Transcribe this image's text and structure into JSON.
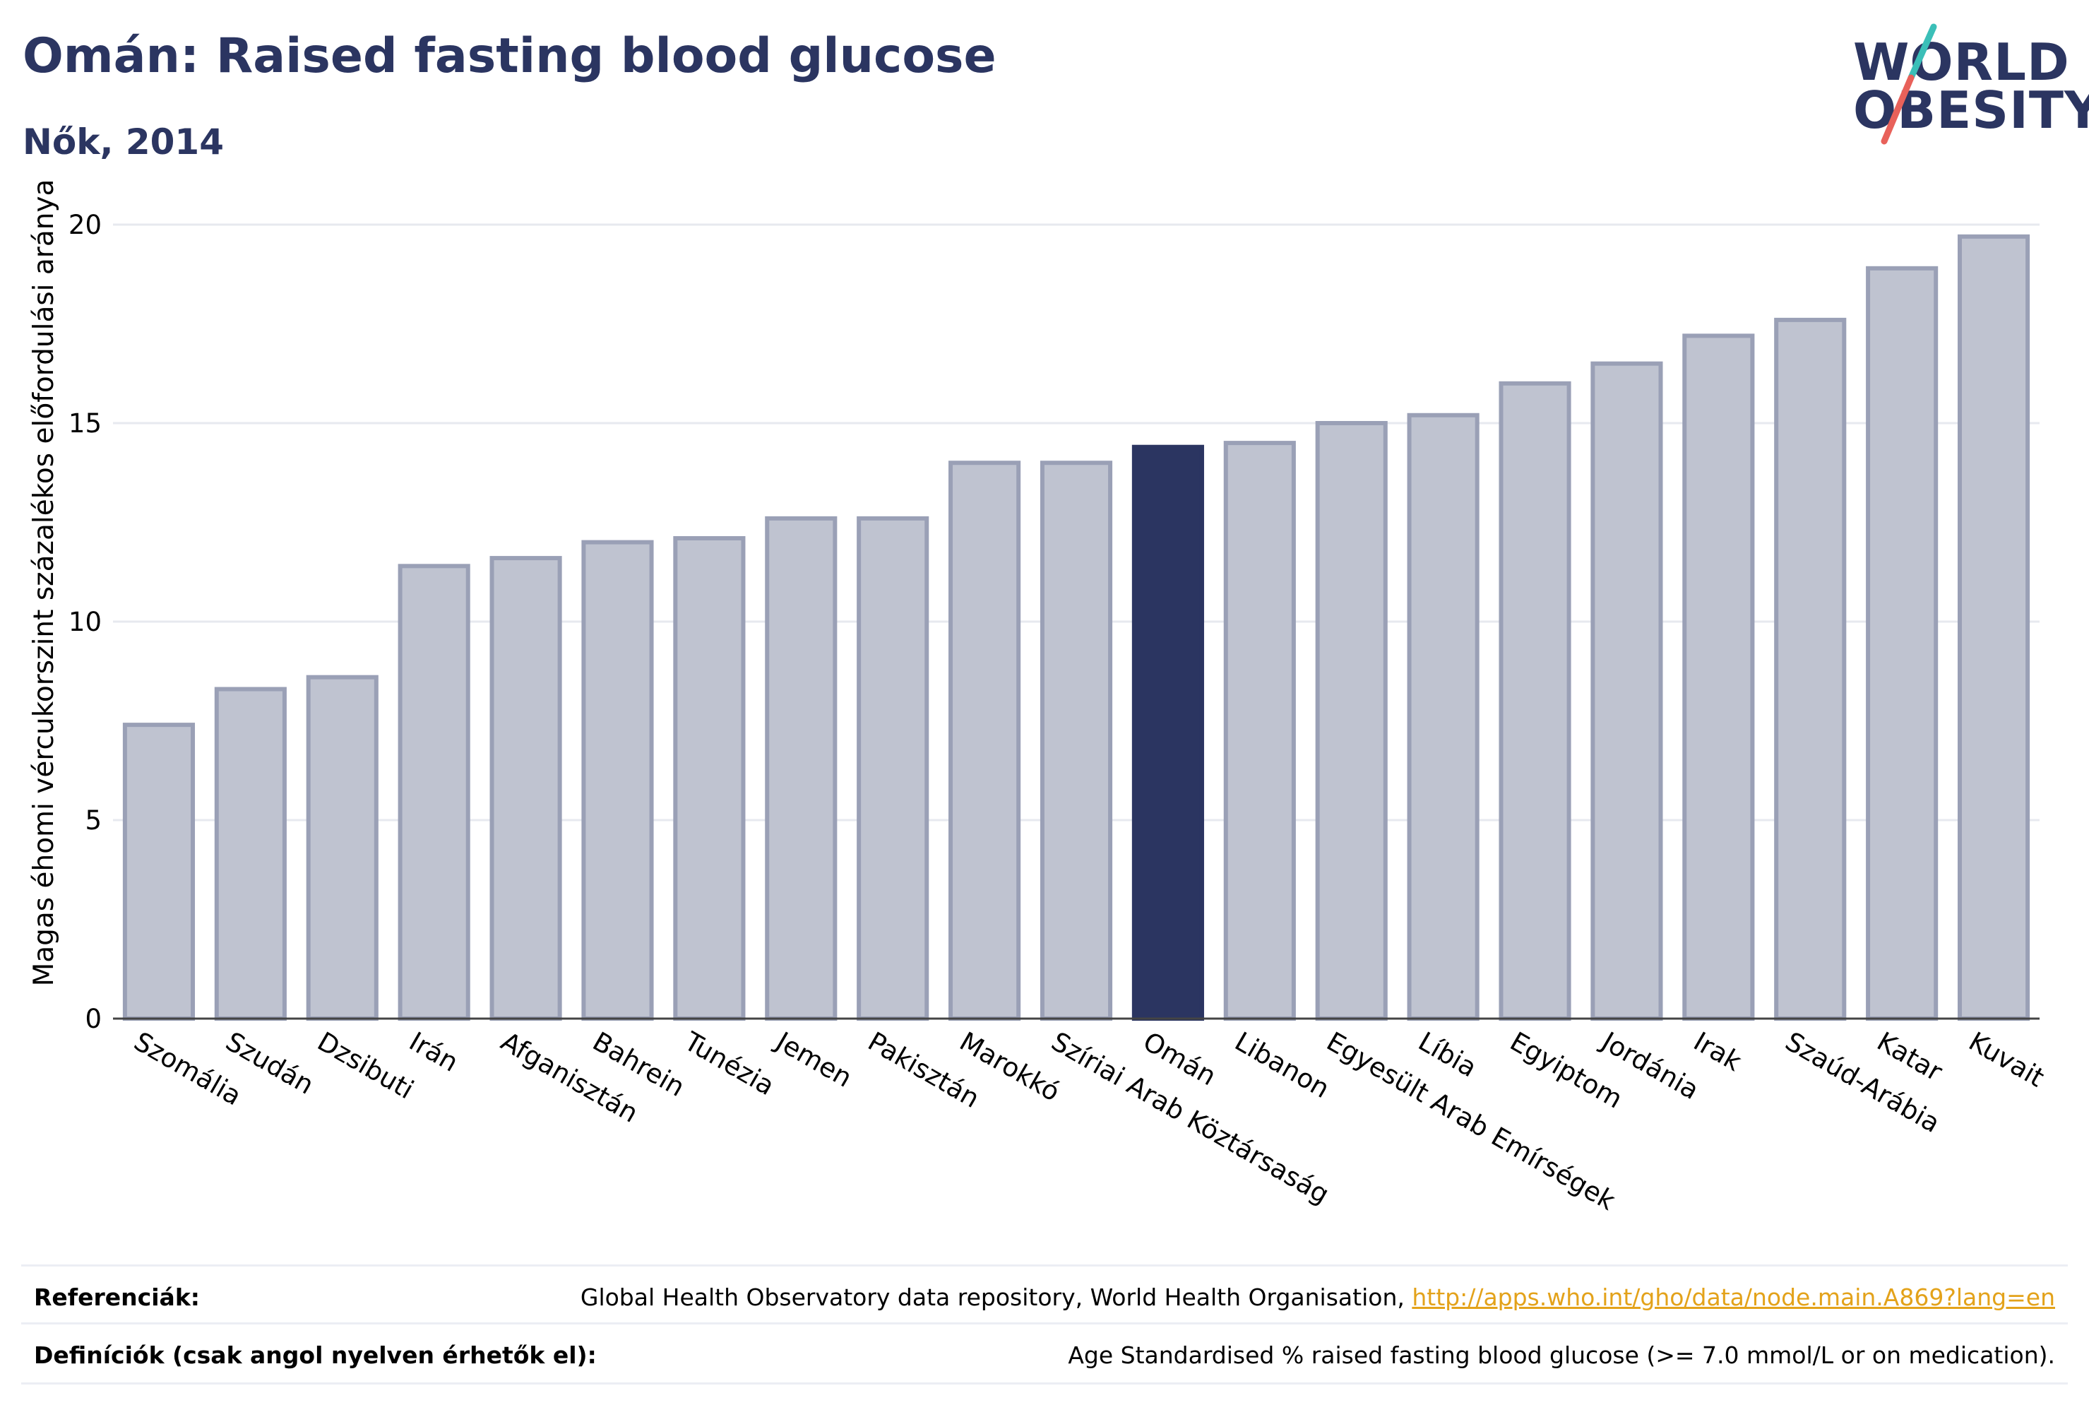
{
  "header": {
    "title": "Omán: Raised fasting blood glucose",
    "subtitle": "Nők, 2014"
  },
  "logo": {
    "line1": "WORLD",
    "line2": "OBESITY",
    "accent_teal": "#3bbfb8",
    "accent_red": "#e8615a"
  },
  "colors": {
    "bar": "#bfc3d0",
    "bar_border": "#9aa0b6",
    "highlight": "#2b3561",
    "title": "#2b3561",
    "link": "#e3a21a"
  },
  "chart_data": {
    "type": "bar",
    "ylabel": "Magas éhomi vércukorszint százalékos előfordulási aránya",
    "xlabel": "",
    "ylim": [
      0,
      20
    ],
    "yticks": [
      0,
      5,
      10,
      15,
      20
    ],
    "grid": true,
    "highlight_category": "Omán",
    "categories": [
      "Szomália",
      "Szudán",
      "Dzsibuti",
      "Irán",
      "Afganisztán",
      "Bahrein",
      "Tunézia",
      "Jemen",
      "Pakisztán",
      "Marokkó",
      "Szíriai Arab Köztársaság",
      "Omán",
      "Libanon",
      "Egyesült Arab Emírségek",
      "Líbia",
      "Egyiptom",
      "Jordánia",
      "Irak",
      "Szaúd-Arábia",
      "Katar",
      "Kuvait"
    ],
    "values": [
      7.4,
      8.3,
      8.6,
      11.4,
      11.6,
      12.0,
      12.1,
      12.6,
      12.6,
      14.0,
      14.0,
      14.4,
      14.5,
      15.0,
      15.2,
      16.0,
      16.5,
      17.2,
      17.6,
      18.9,
      19.7
    ]
  },
  "footer": {
    "references_label": "Referenciák:",
    "references_text": "Global Health Observatory data repository, World Health Organisation, ",
    "references_link": "http://apps.who.int/gho/data/node.main.A869?lang=en",
    "definitions_label": "Definíciók (csak angol nyelven érhetők el):",
    "definitions_text": "Age Standardised % raised fasting blood glucose (>= 7.0 mmol/L or on medication)."
  }
}
